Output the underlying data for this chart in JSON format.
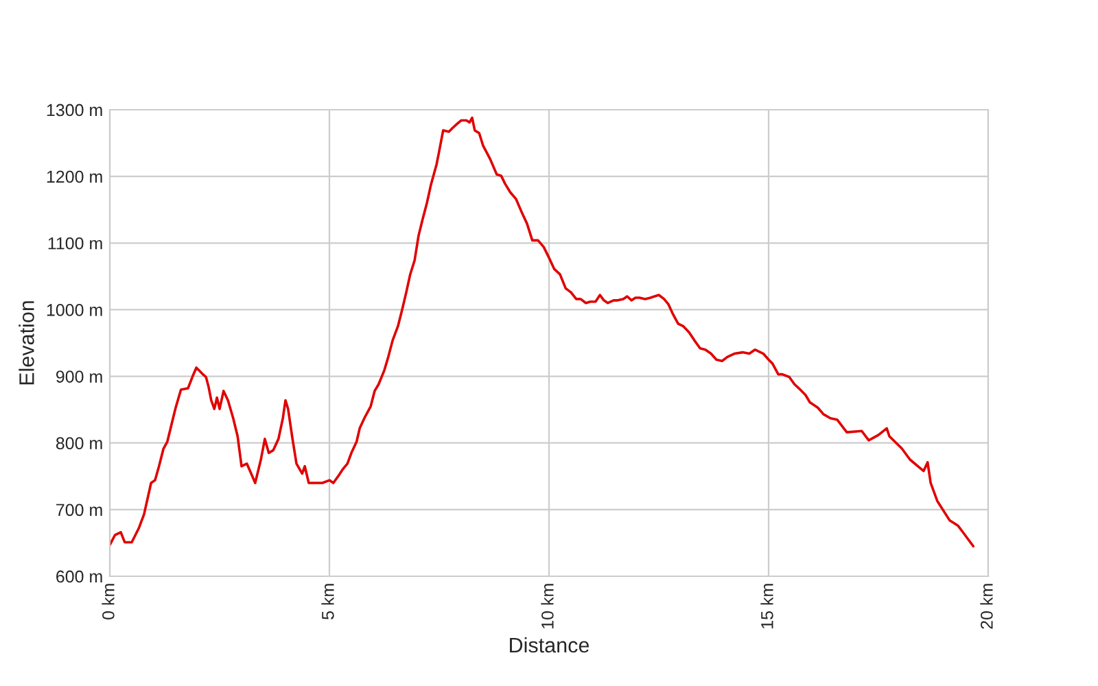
{
  "chart_data": {
    "type": "line",
    "xlabel": "Distance",
    "ylabel": "Elevation",
    "x": [
      0,
      0.12,
      0.25,
      0.34,
      0.5,
      0.66,
      0.78,
      0.94,
      1.03,
      1.12,
      1.22,
      1.31,
      1.44,
      1.5,
      1.62,
      1.78,
      1.88,
      1.97,
      2.03,
      2.12,
      2.19,
      2.25,
      2.31,
      2.38,
      2.44,
      2.5,
      2.59,
      2.69,
      2.81,
      2.91,
      3.0,
      3.12,
      3.22,
      3.31,
      3.44,
      3.53,
      3.62,
      3.72,
      3.84,
      3.94,
      4.0,
      4.06,
      4.16,
      4.25,
      4.38,
      4.44,
      4.53,
      4.69,
      4.84,
      5.0,
      5.09,
      5.22,
      5.31,
      5.41,
      5.5,
      5.62,
      5.69,
      5.81,
      5.94,
      6.03,
      6.12,
      6.25,
      6.34,
      6.44,
      6.56,
      6.66,
      6.75,
      6.84,
      6.94,
      7.03,
      7.12,
      7.22,
      7.31,
      7.44,
      7.5,
      7.59,
      7.72,
      7.81,
      7.91,
      8.0,
      8.12,
      8.19,
      8.25,
      8.31,
      8.41,
      8.5,
      8.66,
      8.81,
      8.91,
      9.0,
      9.12,
      9.25,
      9.38,
      9.5,
      9.62,
      9.75,
      9.88,
      10.0,
      10.12,
      10.25,
      10.38,
      10.5,
      10.62,
      10.72,
      10.84,
      10.94,
      11.06,
      11.16,
      11.25,
      11.34,
      11.47,
      11.56,
      11.69,
      11.78,
      11.88,
      11.97,
      12.06,
      12.19,
      12.31,
      12.5,
      12.62,
      12.72,
      12.81,
      12.94,
      13.06,
      13.19,
      13.31,
      13.44,
      13.56,
      13.69,
      13.81,
      13.94,
      14.06,
      14.22,
      14.41,
      14.56,
      14.69,
      14.88,
      15.0,
      15.09,
      15.22,
      15.31,
      15.47,
      15.59,
      15.69,
      15.84,
      15.94,
      16.12,
      16.25,
      16.41,
      16.56,
      16.78,
      17.12,
      17.28,
      17.5,
      17.69,
      17.75,
      18.03,
      18.22,
      18.53,
      18.62,
      18.69,
      18.84,
      19.12,
      19.31,
      19.47,
      19.66
    ],
    "series": [
      {
        "color": "#e00000",
        "values": [
          647,
          662,
          666,
          651,
          651,
          672,
          693,
          740,
          744,
          765,
          791,
          802,
          837,
          853,
          880,
          882,
          899,
          913,
          909,
          903,
          899,
          884,
          864,
          851,
          868,
          851,
          878,
          864,
          837,
          810,
          765,
          769,
          754,
          740,
          775,
          806,
          785,
          789,
          806,
          837,
          864,
          851,
          806,
          769,
          754,
          765,
          740,
          740,
          740,
          744,
          740,
          752,
          761,
          769,
          785,
          802,
          822,
          839,
          855,
          878,
          888,
          909,
          929,
          954,
          975,
          1001,
          1026,
          1053,
          1074,
          1111,
          1135,
          1160,
          1187,
          1218,
          1238,
          1269,
          1267,
          1273,
          1279,
          1284,
          1284,
          1281,
          1288,
          1269,
          1265,
          1246,
          1226,
          1203,
          1201,
          1189,
          1176,
          1166,
          1146,
          1129,
          1104,
          1104,
          1094,
          1078,
          1061,
          1053,
          1032,
          1026,
          1016,
          1016,
          1010,
          1012,
          1012,
          1022,
          1014,
          1010,
          1014,
          1014,
          1016,
          1020,
          1014,
          1018,
          1018,
          1016,
          1018,
          1022,
          1016,
          1008,
          995,
          979,
          975,
          966,
          954,
          942,
          940,
          934,
          925,
          923,
          929,
          934,
          936,
          934,
          940,
          934,
          925,
          919,
          903,
          903,
          899,
          888,
          882,
          872,
          861,
          853,
          843,
          837,
          835,
          816,
          818,
          804,
          812,
          822,
          810,
          792,
          775,
          758,
          771,
          740,
          713,
          684,
          676,
          662,
          645
        ]
      }
    ],
    "xlim": [
      0,
      20
    ],
    "ylim": [
      600,
      1300
    ],
    "xticks": [
      {
        "value": 0,
        "label": "0 km"
      },
      {
        "value": 5,
        "label": "5 km"
      },
      {
        "value": 10,
        "label": "10 km"
      },
      {
        "value": 15,
        "label": "15 km"
      },
      {
        "value": 20,
        "label": "20 km"
      }
    ],
    "yticks": [
      {
        "value": 600,
        "label": "600 m"
      },
      {
        "value": 700,
        "label": "700 m"
      },
      {
        "value": 800,
        "label": "800 m"
      },
      {
        "value": 900,
        "label": "900 m"
      },
      {
        "value": 1000,
        "label": "1000 m"
      },
      {
        "value": 1100,
        "label": "1100 m"
      },
      {
        "value": 1200,
        "label": "1200 m"
      },
      {
        "value": 1300,
        "label": "1300 m"
      }
    ],
    "grid": true
  }
}
